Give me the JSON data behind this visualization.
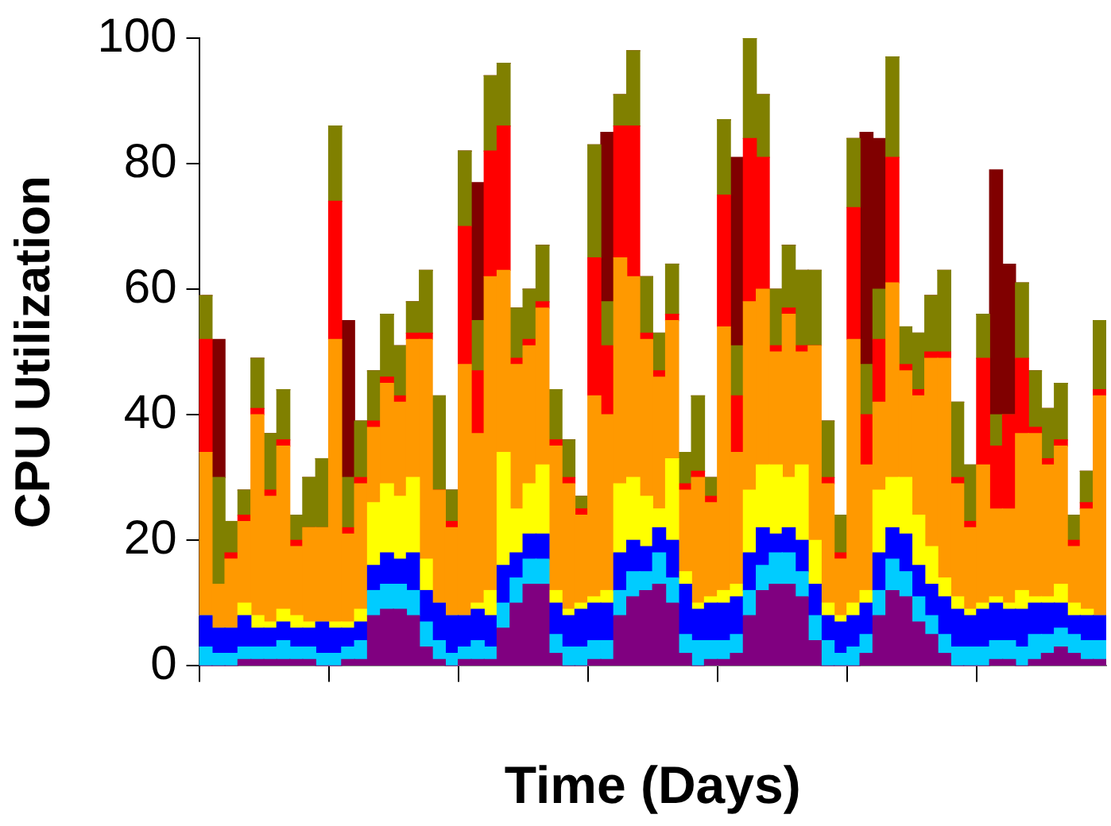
{
  "chart_data": {
    "type": "bar",
    "stacked": true,
    "xlabel": "Time (Days)",
    "ylabel": "CPU Utilization",
    "ylim": [
      0,
      100
    ],
    "yticks": [
      0,
      20,
      40,
      60,
      80,
      100
    ],
    "grid": false,
    "legend": false,
    "categories": [
      null,
      null,
      null,
      null,
      null,
      null,
      null,
      null,
      null,
      null,
      null,
      null,
      null,
      null,
      null,
      null,
      null,
      null,
      null,
      null,
      null,
      null,
      null,
      null,
      null,
      null,
      null,
      null,
      null,
      null,
      null,
      null,
      null,
      null,
      null,
      null,
      null,
      null,
      null,
      null,
      null,
      null,
      null,
      null,
      null,
      null,
      null,
      null,
      null,
      null,
      null,
      null,
      null,
      null,
      null,
      null,
      null,
      null,
      null,
      null,
      null,
      null,
      null,
      null,
      null,
      null,
      null,
      null,
      null,
      null
    ],
    "series": [
      {
        "color": "#800080",
        "values": [
          0,
          0,
          0,
          1,
          1,
          1,
          1,
          1,
          1,
          0,
          0,
          1,
          1,
          8,
          9,
          9,
          8,
          3,
          1,
          0,
          1,
          1,
          1,
          6,
          10,
          13,
          13,
          2,
          0,
          0,
          1,
          1,
          8,
          11,
          12,
          13,
          10,
          2,
          0,
          1,
          1,
          2,
          8,
          12,
          13,
          13,
          11,
          4,
          0,
          0,
          0,
          2,
          8,
          12,
          11,
          7,
          5,
          2,
          0,
          0,
          0,
          1,
          1,
          0,
          1,
          2,
          3,
          2,
          1,
          1
        ]
      },
      {
        "color": "#00ccff",
        "values": [
          3,
          2,
          2,
          2,
          2,
          2,
          3,
          2,
          2,
          2,
          2,
          2,
          3,
          4,
          4,
          4,
          4,
          4,
          3,
          2,
          2,
          3,
          2,
          4,
          4,
          4,
          4,
          3,
          3,
          3,
          3,
          3,
          4,
          4,
          3,
          5,
          4,
          3,
          4,
          3,
          3,
          3,
          4,
          4,
          5,
          5,
          4,
          4,
          4,
          2,
          3,
          3,
          4,
          5,
          4,
          4,
          3,
          3,
          3,
          3,
          3,
          3,
          3,
          3,
          4,
          3,
          3,
          3,
          3,
          3
        ]
      },
      {
        "color": "#0000ff",
        "values": [
          5,
          4,
          4,
          5,
          3,
          3,
          3,
          3,
          3,
          5,
          4,
          3,
          3,
          4,
          5,
          4,
          6,
          5,
          6,
          6,
          5,
          5,
          5,
          6,
          4,
          4,
          4,
          5,
          5,
          6,
          6,
          6,
          6,
          5,
          4,
          4,
          6,
          8,
          5,
          6,
          6,
          6,
          6,
          6,
          3,
          4,
          5,
          5,
          4,
          5,
          5,
          5,
          6,
          5,
          6,
          5,
          5,
          6,
          6,
          5,
          6,
          6,
          5,
          6,
          5,
          5,
          4,
          3,
          4,
          4
        ]
      },
      {
        "color": "#ffff00",
        "values": [
          0,
          0,
          0,
          2,
          2,
          1,
          2,
          2,
          1,
          0,
          1,
          1,
          2,
          10,
          11,
          10,
          12,
          5,
          0,
          0,
          0,
          1,
          4,
          18,
          7,
          8,
          11,
          2,
          1,
          1,
          1,
          2,
          11,
          10,
          8,
          3,
          13,
          2,
          1,
          1,
          2,
          2,
          10,
          10,
          11,
          8,
          12,
          7,
          2,
          1,
          2,
          2,
          10,
          8,
          9,
          8,
          6,
          3,
          2,
          1,
          1,
          1,
          1,
          3,
          1,
          1,
          3,
          2,
          1,
          0
        ]
      },
      {
        "color": "#ff9900",
        "values": [
          26,
          7,
          11,
          13,
          32,
          20,
          26,
          11,
          15,
          15,
          45,
          14,
          20,
          12,
          16,
          15,
          22,
          35,
          18,
          14,
          40,
          27,
          50,
          29,
          23,
          22,
          25,
          23,
          20,
          14,
          32,
          28,
          36,
          32,
          25,
          21,
          22,
          13,
          20,
          15,
          42,
          21,
          30,
          28,
          18,
          26,
          18,
          31,
          19,
          9,
          42,
          20,
          14,
          31,
          17,
          19,
          30,
          35,
          18,
          13,
          22,
          14,
          15,
          25,
          26,
          21,
          22,
          9,
          16,
          35
        ]
      },
      {
        "color": "#ff0000",
        "values": [
          18,
          0,
          1,
          1,
          1,
          1,
          1,
          1,
          0,
          0,
          22,
          1,
          1,
          1,
          1,
          1,
          1,
          1,
          0,
          1,
          22,
          10,
          20,
          23,
          1,
          1,
          1,
          1,
          1,
          1,
          22,
          11,
          21,
          24,
          1,
          1,
          1,
          1,
          1,
          1,
          21,
          9,
          26,
          21,
          1,
          1,
          1,
          0,
          1,
          1,
          21,
          8,
          10,
          20,
          1,
          1,
          1,
          1,
          1,
          1,
          17,
          10,
          15,
          12,
          1,
          1,
          1,
          1,
          1,
          1
        ]
      },
      {
        "color": "#808000",
        "values": [
          7,
          17,
          5,
          4,
          8,
          9,
          8,
          4,
          8,
          11,
          12,
          8,
          9,
          8,
          10,
          8,
          5,
          10,
          15,
          5,
          12,
          8,
          12,
          10,
          8,
          8,
          9,
          8,
          6,
          2,
          18,
          7,
          5,
          12,
          9,
          6,
          8,
          5,
          12,
          3,
          12,
          8,
          16,
          10,
          9,
          10,
          12,
          12,
          9,
          6,
          11,
          8,
          8,
          16,
          6,
          9,
          9,
          13,
          12,
          9,
          7,
          5,
          0,
          12,
          9,
          8,
          9,
          4,
          5,
          11
        ]
      },
      {
        "color": "#800000",
        "values": [
          0,
          22,
          0,
          0,
          0,
          0,
          0,
          0,
          0,
          0,
          0,
          25,
          0,
          0,
          0,
          0,
          0,
          0,
          0,
          0,
          0,
          22,
          0,
          0,
          0,
          0,
          0,
          0,
          0,
          0,
          0,
          27,
          0,
          0,
          0,
          0,
          0,
          0,
          0,
          0,
          0,
          30,
          0,
          0,
          0,
          0,
          0,
          0,
          0,
          0,
          0,
          37,
          24,
          0,
          0,
          0,
          0,
          0,
          0,
          0,
          0,
          39,
          24,
          0,
          0,
          0,
          0,
          0,
          0,
          0
        ]
      }
    ]
  }
}
